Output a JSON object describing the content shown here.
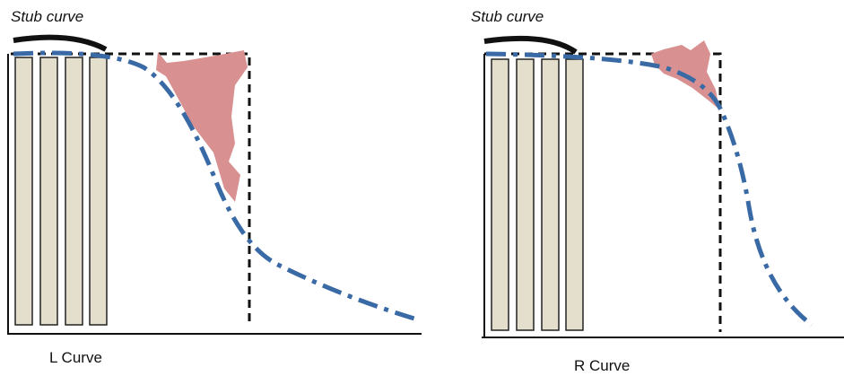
{
  "panels": [
    {
      "stub_label": "Stub curve",
      "caption": "L Curve"
    },
    {
      "stub_label": "Stub curve",
      "caption": "R Curve"
    }
  ]
}
